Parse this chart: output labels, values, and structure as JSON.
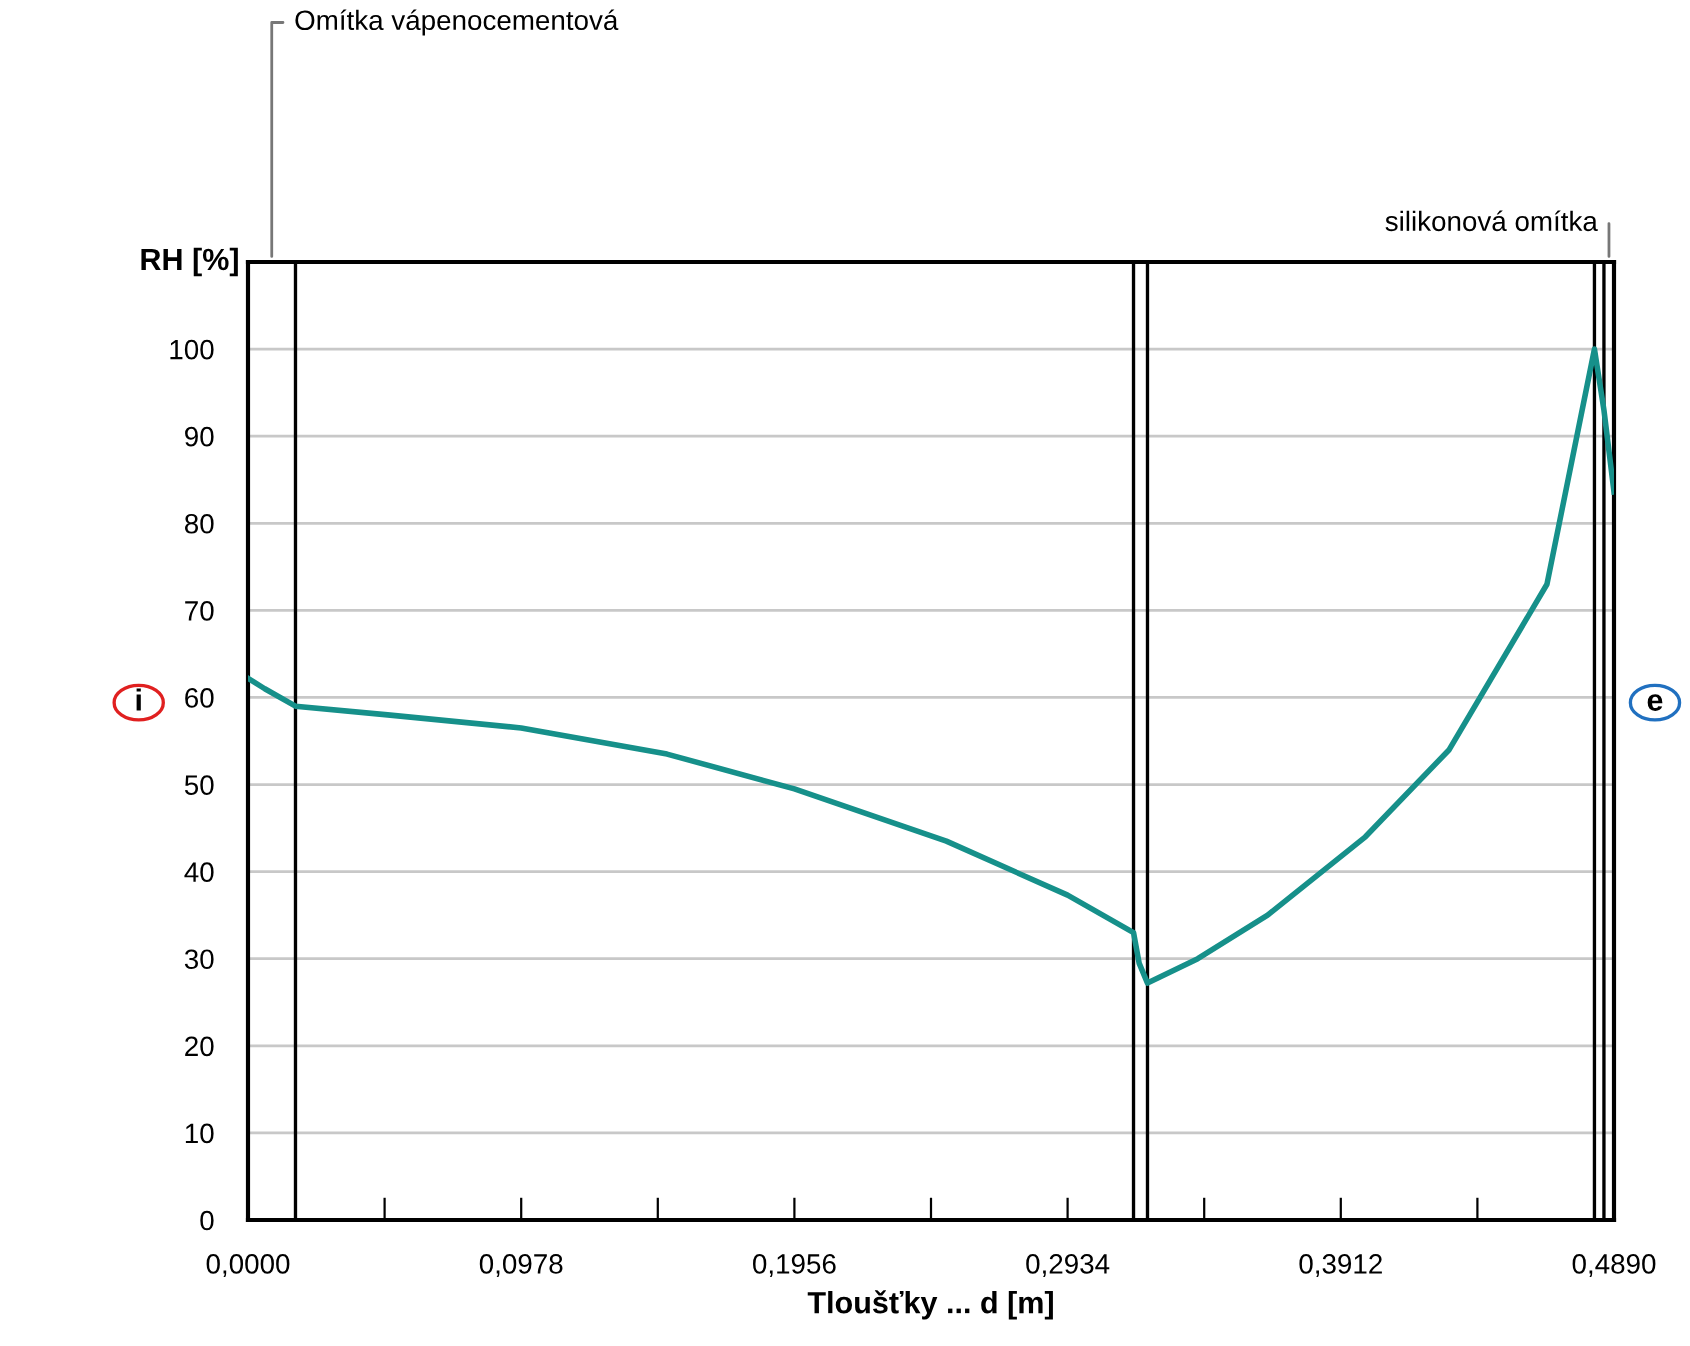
{
  "chart_data": {
    "type": "line",
    "xlabel": "Tloušťky ... d [m]",
    "ylabel": "RH [%]",
    "x": [
      0,
      0.006,
      0.017,
      0.05,
      0.0978,
      0.15,
      0.1956,
      0.25,
      0.2934,
      0.317,
      0.319,
      0.322,
      0.34,
      0.365,
      0.4,
      0.43,
      0.465,
      0.482,
      0.4854,
      0.489
    ],
    "series": [
      {
        "color": "#16908a",
        "values": [
          62.2,
          61,
          59,
          58,
          56.5,
          53.5,
          49.5,
          43.5,
          37.3,
          33,
          29.5,
          27.2,
          30,
          35,
          44,
          54,
          73,
          100,
          93,
          83.6
        ]
      }
    ],
    "xlim": [
      0,
      0.489
    ],
    "ylim": [
      0,
      110
    ],
    "xticks": [
      {
        "value": 0,
        "label": "0,0000"
      },
      {
        "value": 0.0489,
        "label": null
      },
      {
        "value": 0.0978,
        "label": "0,0978"
      },
      {
        "value": 0.1467,
        "label": null
      },
      {
        "value": 0.1956,
        "label": "0,1956"
      },
      {
        "value": 0.2445,
        "label": null
      },
      {
        "value": 0.2934,
        "label": "0,2934"
      },
      {
        "value": 0.3423,
        "label": null
      },
      {
        "value": 0.3912,
        "label": "0,3912"
      },
      {
        "value": 0.4401,
        "label": null
      },
      {
        "value": 0.489,
        "label": "0,4890"
      }
    ],
    "yticks": [
      0,
      10,
      20,
      30,
      40,
      50,
      60,
      70,
      80,
      90,
      100
    ],
    "grid": "y",
    "marker": "none",
    "line_style": "solid",
    "legend": false,
    "ref_lines": [
      {
        "axis": "x",
        "value": 0.017,
        "color": "#000000"
      },
      {
        "axis": "x",
        "value": 0.317,
        "color": "#000000"
      },
      {
        "axis": "x",
        "value": 0.322,
        "color": "#000000"
      },
      {
        "axis": "x",
        "value": 0.482,
        "color": "#000000"
      },
      {
        "axis": "x",
        "value": 0.4854,
        "color": "#000000"
      }
    ],
    "annotations": [
      "Omítka vápenocementová",
      "silikonová omítka",
      "i",
      "e"
    ]
  }
}
